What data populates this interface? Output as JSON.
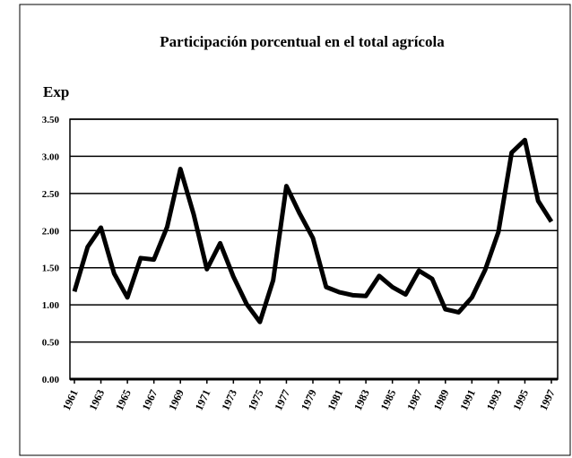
{
  "chart_data": {
    "type": "line",
    "title": "Participación porcentual en el total agrícola",
    "ylabel": "Exp",
    "x": [
      1961,
      1962,
      1963,
      1964,
      1965,
      1966,
      1967,
      1968,
      1969,
      1970,
      1971,
      1972,
      1973,
      1974,
      1975,
      1976,
      1977,
      1978,
      1979,
      1980,
      1981,
      1982,
      1983,
      1984,
      1985,
      1986,
      1987,
      1988,
      1989,
      1990,
      1991,
      1992,
      1993,
      1994,
      1995,
      1996,
      1997
    ],
    "series": [
      {
        "name": "Exp",
        "color": "#000000",
        "values": [
          1.18,
          1.78,
          2.04,
          1.42,
          1.1,
          1.63,
          1.61,
          2.05,
          2.83,
          2.22,
          1.48,
          1.83,
          1.38,
          1.01,
          0.77,
          1.33,
          2.6,
          2.23,
          1.9,
          1.24,
          1.17,
          1.13,
          1.12,
          1.39,
          1.24,
          1.14,
          1.46,
          1.35,
          0.94,
          0.9,
          1.1,
          1.47,
          1.98,
          3.05,
          3.22,
          2.4,
          2.12
        ]
      }
    ],
    "xlim": [
      1961,
      1997
    ],
    "xticks": [
      1961,
      1963,
      1965,
      1967,
      1969,
      1971,
      1973,
      1975,
      1977,
      1979,
      1981,
      1983,
      1985,
      1987,
      1989,
      1991,
      1993,
      1995,
      1997
    ],
    "ylim": [
      0,
      3.5
    ],
    "yticks": [
      {
        "value": 0,
        "label": "0.00"
      },
      {
        "value": 0.5,
        "label": "0.50"
      },
      {
        "value": 1,
        "label": "1.00"
      },
      {
        "value": 1.5,
        "label": "1.50"
      },
      {
        "value": 2,
        "label": "2.00"
      },
      {
        "value": 2.5,
        "label": "2.50"
      },
      {
        "value": 3,
        "label": "3.00"
      },
      {
        "value": 3.5,
        "label": "3.50"
      }
    ],
    "grid": true
  }
}
